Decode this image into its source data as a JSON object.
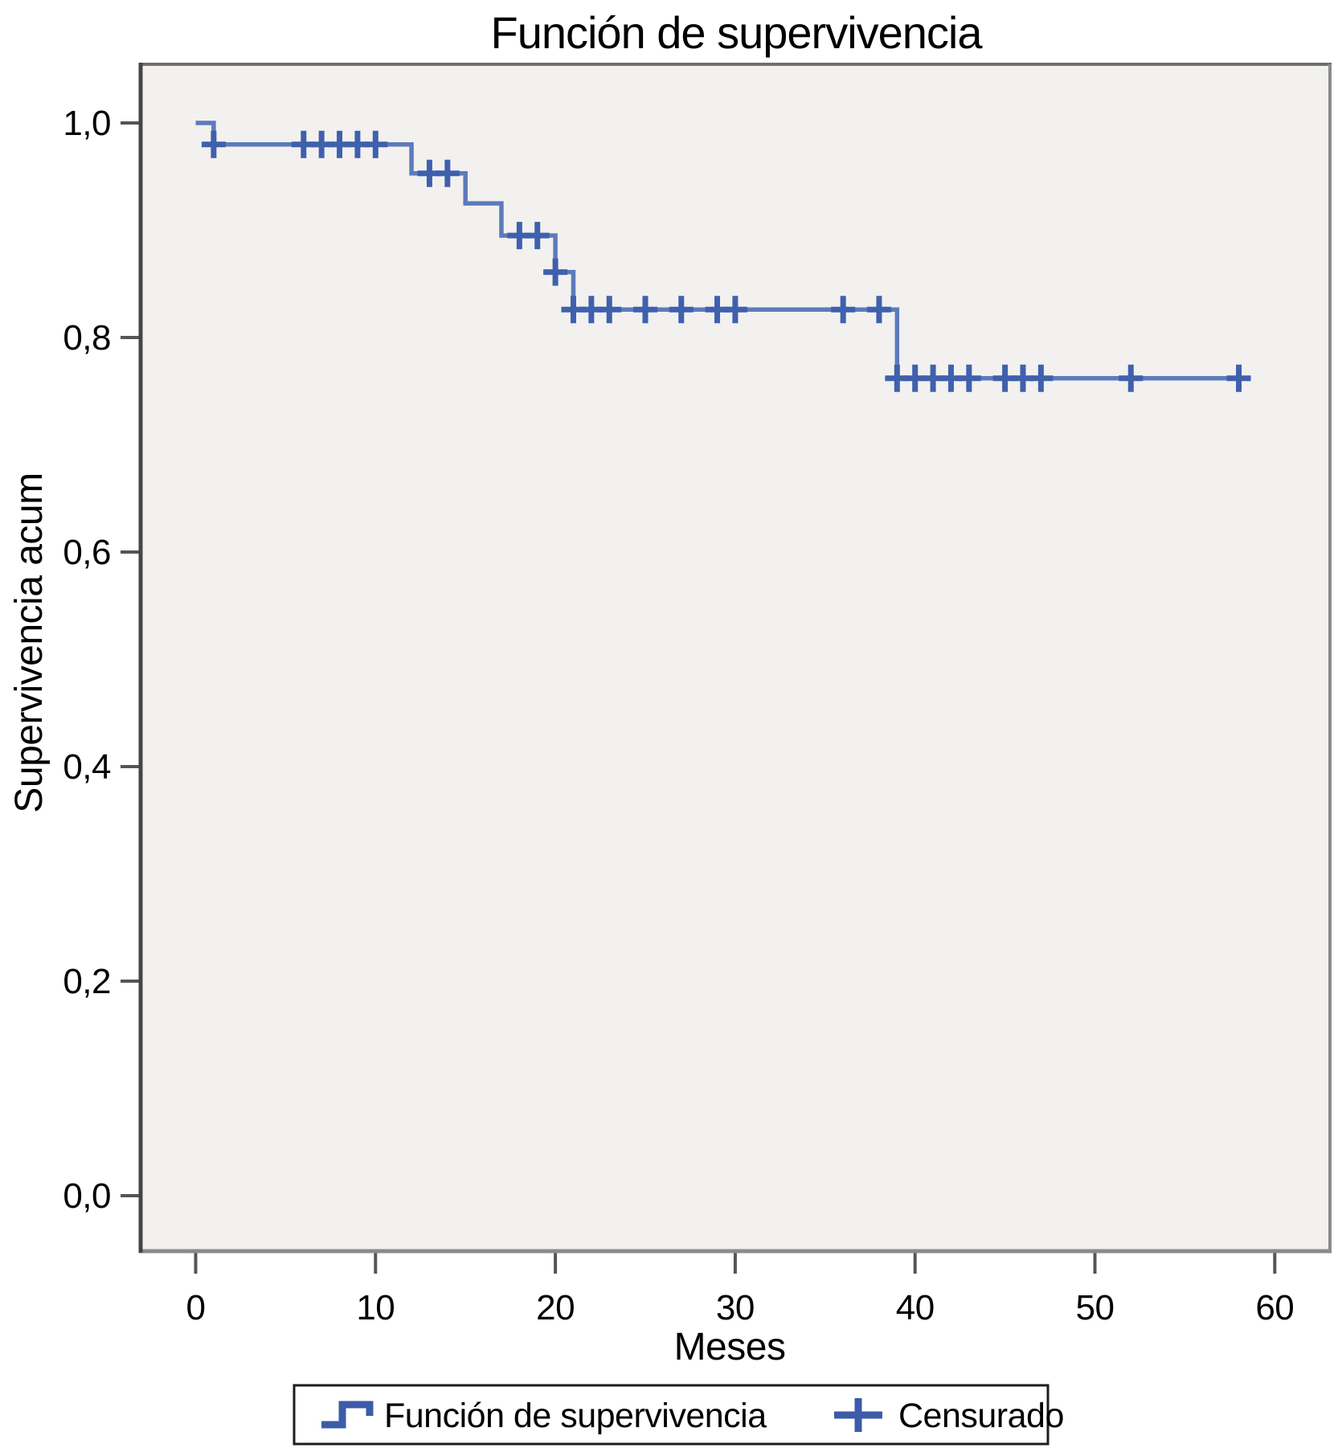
{
  "chart_data": {
    "type": "line",
    "subtype": "kaplan-meier-step",
    "title": "Función de supervivencia",
    "xlabel": "Meses",
    "ylabel": "Supervivencia acum",
    "x_axis": {
      "ticks": [
        0,
        10,
        20,
        30,
        40,
        50,
        60
      ],
      "tick_labels": [
        "0",
        "10",
        "20",
        "30",
        "40",
        "50",
        "60"
      ]
    },
    "y_axis": {
      "ticks": [
        0.0,
        0.2,
        0.4,
        0.6,
        0.8,
        1.0
      ],
      "tick_labels": [
        "0,0",
        "0,2",
        "0,4",
        "0,6",
        "0,8",
        "1,0"
      ],
      "range": [
        0.0,
        1.0
      ]
    },
    "grid": false,
    "series": [
      {
        "name": "Función de supervivencia",
        "style": "step",
        "points": [
          [
            0,
            1.0
          ],
          [
            1,
            0.98
          ],
          [
            12,
            0.953
          ],
          [
            15,
            0.925
          ],
          [
            17,
            0.895
          ],
          [
            20,
            0.861
          ],
          [
            21,
            0.826
          ],
          [
            39,
            0.762
          ]
        ],
        "end_x": 58
      }
    ],
    "censored": {
      "name": "Censurado",
      "marker": "plus",
      "times": [
        1,
        6,
        7,
        8,
        9,
        10,
        13,
        14,
        18,
        19,
        20,
        21,
        22,
        23,
        25,
        27,
        29,
        30,
        36,
        38,
        39,
        40,
        41,
        42,
        43,
        45,
        46,
        47,
        52,
        58
      ]
    },
    "legend": {
      "position": "bottom",
      "entries": [
        {
          "marker": "step-line",
          "label": "Función de supervivencia"
        },
        {
          "marker": "plus",
          "label": "Censurado"
        }
      ]
    },
    "colors": {
      "line": "#5d7abc",
      "censor_marker": "#3f60ad",
      "legend_icon": "#3c5ca8",
      "plot_bg": "#f2f1ef",
      "frame": "#7d7d7d",
      "left_axis": "#454545",
      "tick": "#555555",
      "text": "#000000"
    }
  }
}
